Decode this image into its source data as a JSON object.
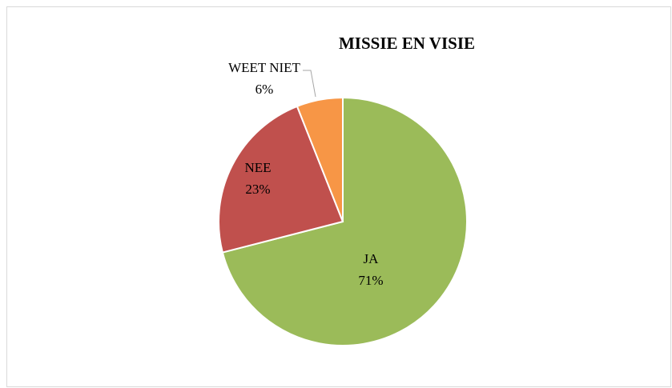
{
  "chart_data": {
    "type": "pie",
    "title": "MISSIE EN VISIE",
    "categories": [
      "JA",
      "NEE",
      "WEET NIET"
    ],
    "values": [
      71,
      23,
      6
    ],
    "value_labels": [
      "71%",
      "23%",
      "6%"
    ],
    "colors": [
      "#9bbb59",
      "#c0504d",
      "#f79646"
    ]
  }
}
